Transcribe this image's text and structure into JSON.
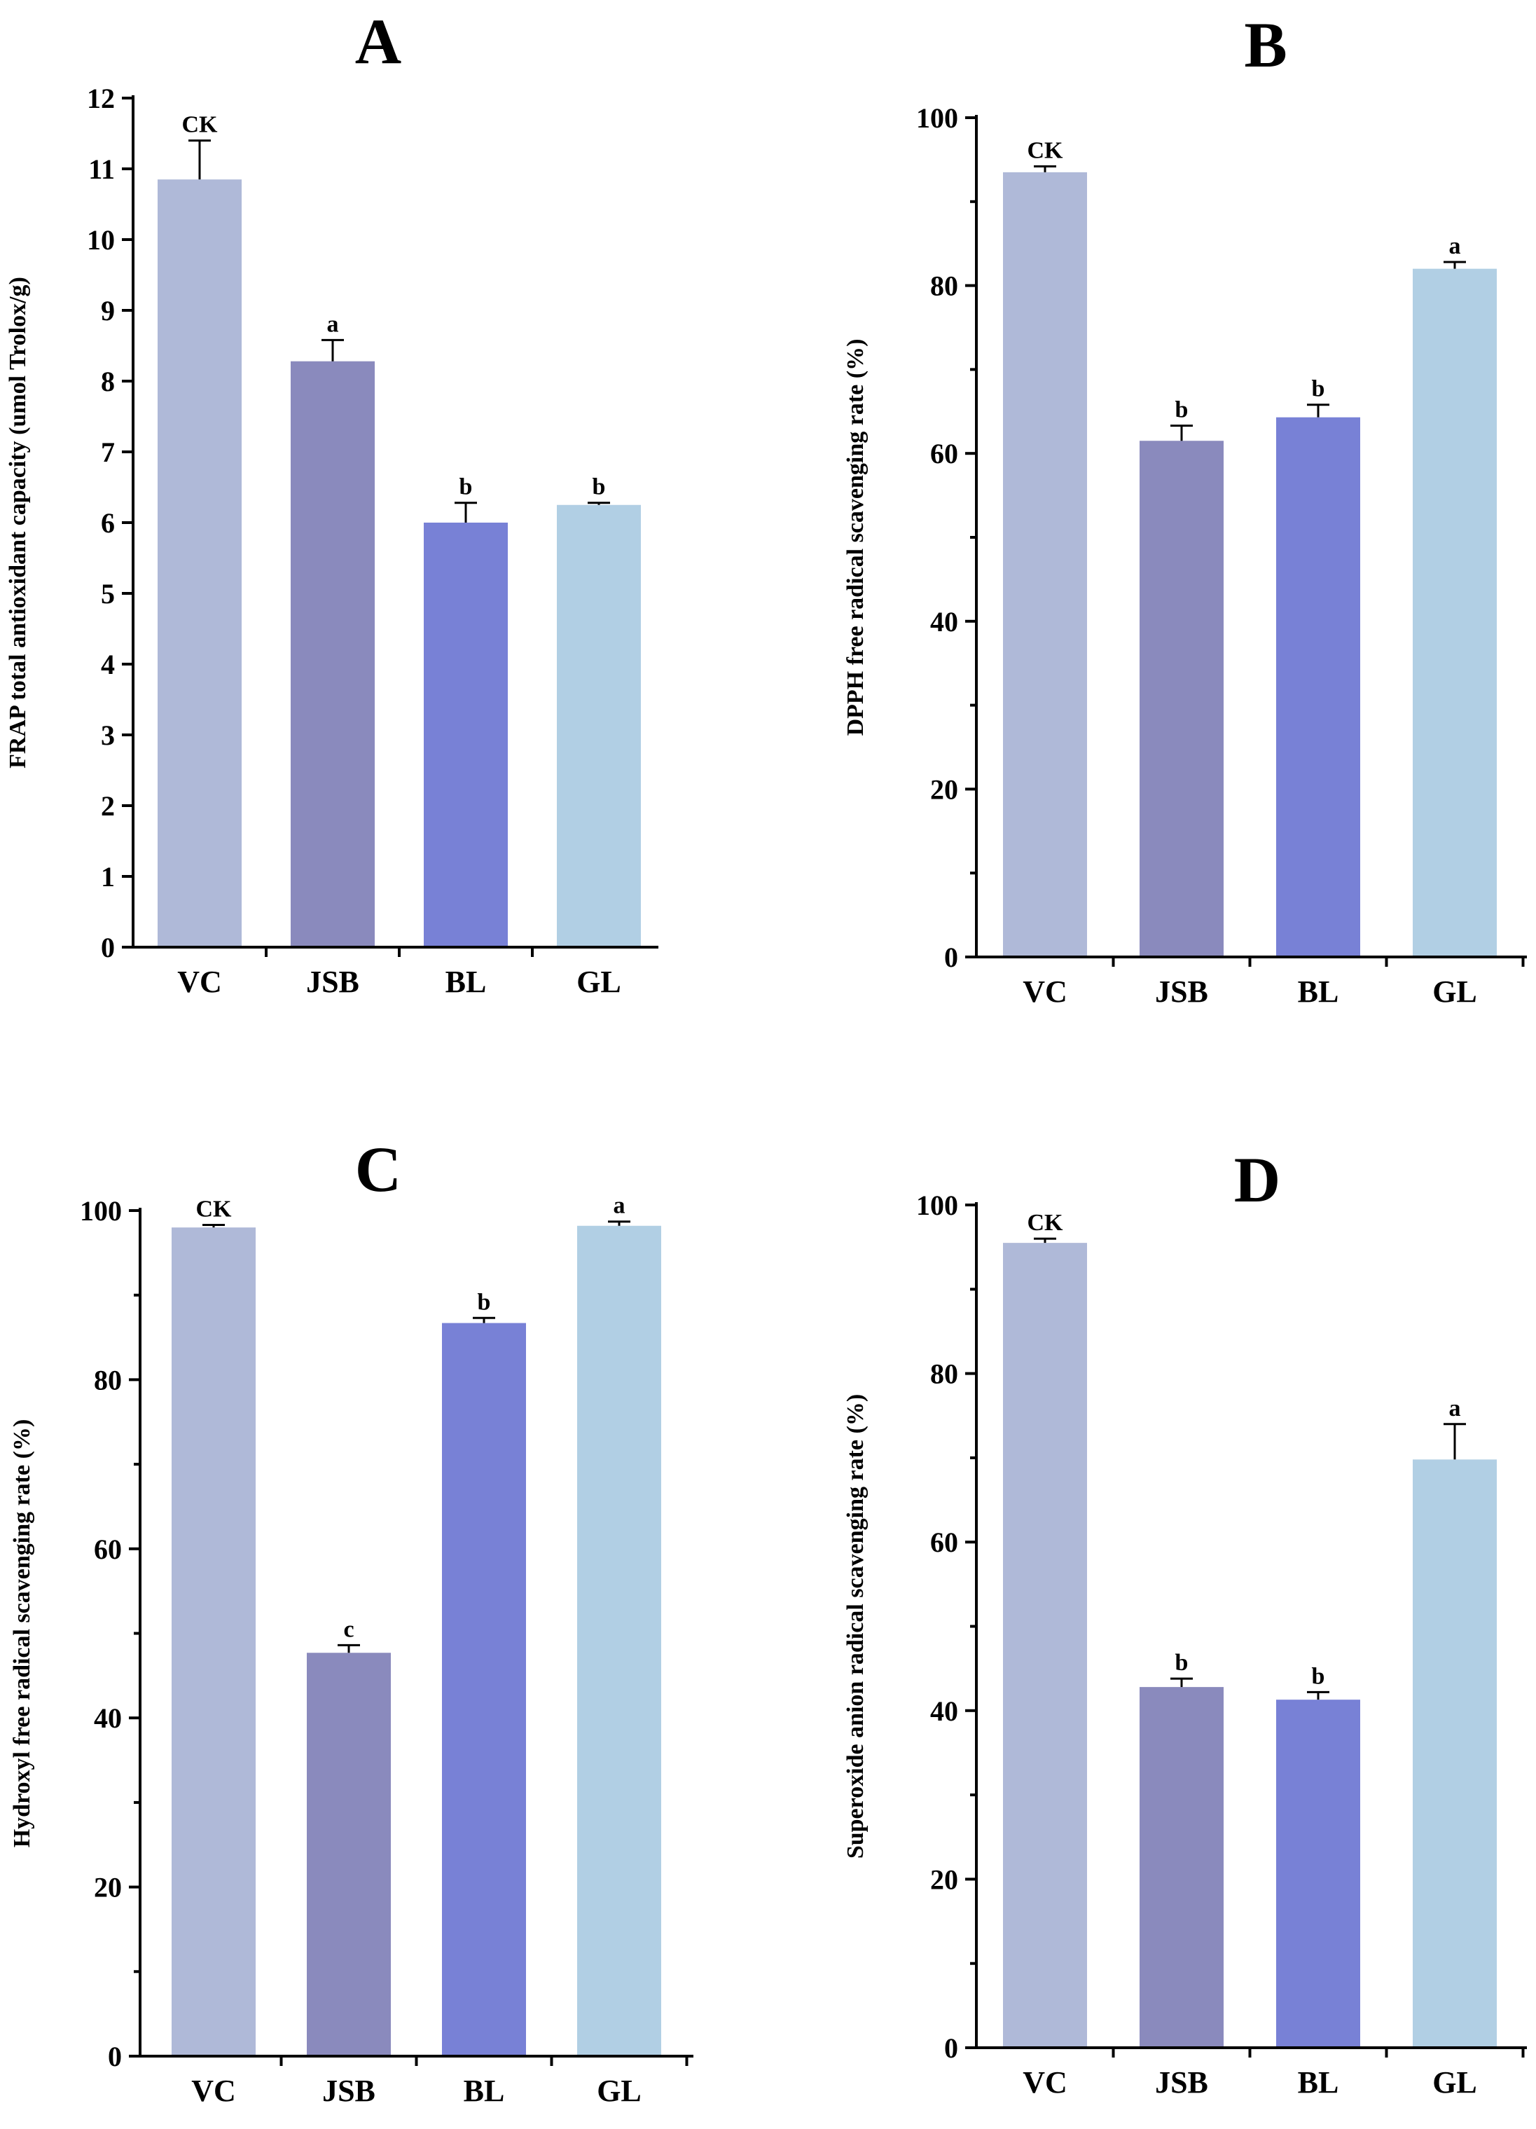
{
  "chart_data": [
    {
      "type": "bar",
      "panel": "A",
      "ylabel": "FRAP total antioxidant capacity (umol Trolox/g)",
      "categories": [
        "VC",
        "JSB",
        "BL",
        "GL"
      ],
      "values": [
        10.85,
        8.28,
        6.0,
        6.25
      ],
      "errors": [
        0.55,
        0.3,
        0.28,
        0.03
      ],
      "significance": [
        "CK",
        "a",
        "b",
        "b"
      ],
      "ylim": [
        0,
        12
      ],
      "yticks": [
        0,
        1,
        2,
        3,
        4,
        5,
        6,
        7,
        8,
        9,
        10,
        11,
        12
      ]
    },
    {
      "type": "bar",
      "panel": "B",
      "ylabel": "DPPH free radical scavenging rate (%)",
      "categories": [
        "VC",
        "JSB",
        "BL",
        "GL"
      ],
      "values": [
        93.5,
        61.5,
        64.3,
        82.0
      ],
      "errors": [
        0.7,
        1.8,
        1.5,
        0.8
      ],
      "significance": [
        "CK",
        "b",
        "b",
        "a"
      ],
      "ylim": [
        0,
        100
      ],
      "yticks": [
        0,
        20,
        40,
        60,
        80,
        100
      ]
    },
    {
      "type": "bar",
      "panel": "C",
      "ylabel": "Hydroxyl free radical scavenging rate (%)",
      "categories": [
        "VC",
        "JSB",
        "BL",
        "GL"
      ],
      "values": [
        98.0,
        47.7,
        86.7,
        98.2
      ],
      "errors": [
        0.3,
        0.9,
        0.6,
        0.5
      ],
      "significance": [
        "CK",
        "c",
        "b",
        "a"
      ],
      "ylim": [
        0,
        100
      ],
      "yticks": [
        0,
        20,
        40,
        60,
        80,
        100
      ]
    },
    {
      "type": "bar",
      "panel": "D",
      "ylabel": "Superoxide anion radical scavenging rate (%)",
      "categories": [
        "VC",
        "JSB",
        "BL",
        "GL"
      ],
      "values": [
        95.5,
        42.8,
        41.3,
        69.8
      ],
      "errors": [
        0.5,
        1.0,
        0.9,
        4.2
      ],
      "significance": [
        "CK",
        "b",
        "b",
        "a"
      ],
      "ylim": [
        0,
        100
      ],
      "yticks": [
        0,
        20,
        40,
        60,
        80,
        100
      ]
    }
  ],
  "colors": {
    "bars": [
      "#afb9d8",
      "#8a8abd",
      "#7881d6",
      "#b1cfe4"
    ],
    "axis": "#000000"
  }
}
